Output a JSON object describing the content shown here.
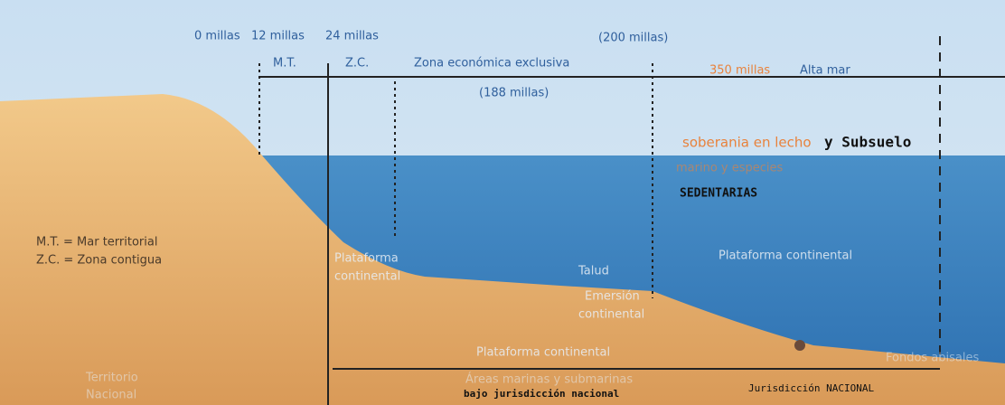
{
  "top": {
    "miles_0": "0 millas",
    "miles_12": "12 millas",
    "miles_24": "24 millas",
    "miles_200": "(200 millas)",
    "mt": "M.T.",
    "zc": "Z.C.",
    "zee": "Zona económica exclusiva",
    "miles_188": "(188 millas)",
    "miles_350": "350 millas",
    "high_sea": "Alta mar"
  },
  "notes": {
    "line1": "soberania en lecho",
    "line1_hand": "y Subsuelo",
    "line2": "marino y especies",
    "line3_hand": "SEDENTARIAS"
  },
  "legend": {
    "mt": "M.T. = Mar territorial",
    "zc": "Z.C. = Zona contigua"
  },
  "zones": {
    "shelf_left_1": "Plataforma",
    "shelf_left_2": "continental",
    "slope": "Talud",
    "rise_1": "Emersión",
    "rise_2": "continental",
    "shelf_right": "Plataforma continental",
    "shelf_bottom": "Plataforma continental",
    "abyssal": "Fondos abisales",
    "territory_1": "Territorio",
    "territory_2": "Nacional",
    "areas": "Áreas marinas y submarinas",
    "areas_hand": "bajo jurisdicción nacional",
    "jurisdiction_hand": "Jurisdicción NACIONAL"
  }
}
